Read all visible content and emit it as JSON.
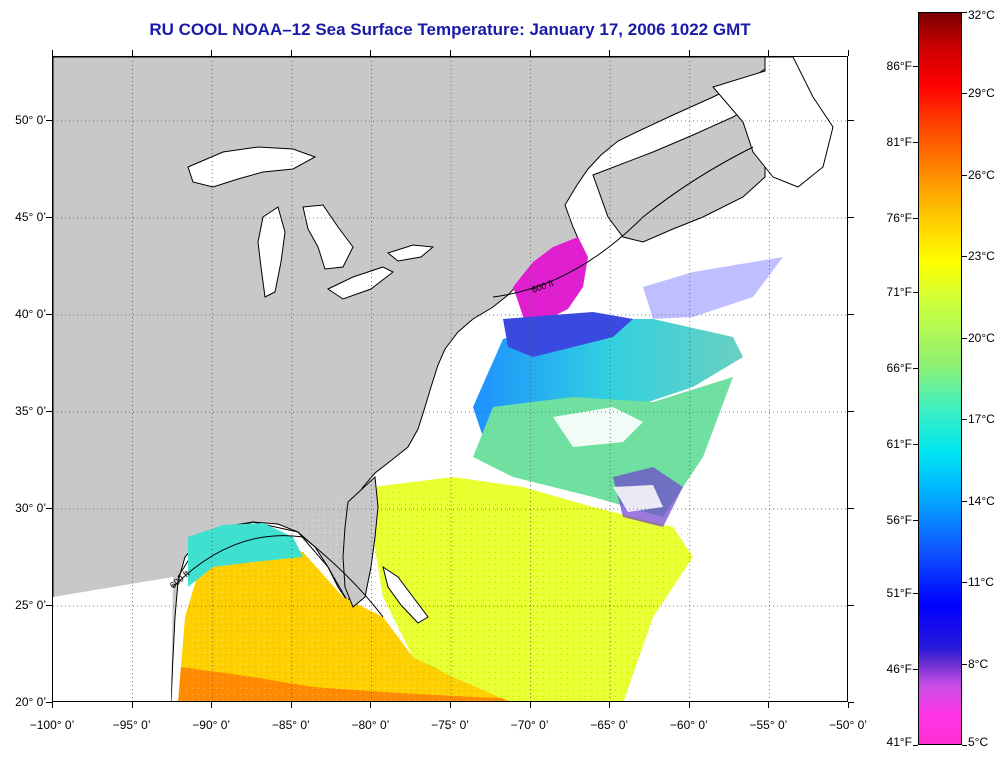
{
  "title": "RU COOL  NOAA–12  Sea Surface Temperature:  January 17, 2006 1022 GMT",
  "map": {
    "lon_range": [
      -100,
      -50
    ],
    "lat_range": [
      20,
      53.3
    ],
    "latitude_labels": [
      {
        "lat": 50,
        "label": "50° 0’"
      },
      {
        "lat": 45,
        "label": "45° 0’"
      },
      {
        "lat": 40,
        "label": "40° 0’"
      },
      {
        "lat": 35,
        "label": "35° 0’"
      },
      {
        "lat": 30,
        "label": "30° 0’"
      },
      {
        "lat": 25,
        "label": "25° 0’"
      },
      {
        "lat": 20,
        "label": "20° 0’"
      }
    ],
    "longitude_labels": [
      {
        "lon": -100,
        "label": "−100° 0’"
      },
      {
        "lon": -95,
        "label": "−95° 0’"
      },
      {
        "lon": -90,
        "label": "−90° 0’"
      },
      {
        "lon": -85,
        "label": "−85° 0’"
      },
      {
        "lon": -80,
        "label": "−80° 0’"
      },
      {
        "lon": -75,
        "label": "−75° 0’"
      },
      {
        "lon": -70,
        "label": "−70° 0’"
      },
      {
        "lon": -65,
        "label": "−65° 0’"
      },
      {
        "lon": -60,
        "label": "−60° 0’"
      },
      {
        "lon": -55,
        "label": "−55° 0’"
      },
      {
        "lon": -50,
        "label": "−50° 0’"
      }
    ],
    "contour_label": "600 ft",
    "colors": {
      "land": "#c8c8c8",
      "water_no_data": "#ffffff",
      "coastline": "#000000"
    }
  },
  "colorbar": {
    "range_c": [
      5,
      32
    ],
    "celsius_labels": [
      {
        "value": 32,
        "label": "32°C"
      },
      {
        "value": 29,
        "label": "29°C"
      },
      {
        "value": 26,
        "label": "26°C"
      },
      {
        "value": 23,
        "label": "23°C"
      },
      {
        "value": 20,
        "label": "20°C"
      },
      {
        "value": 17,
        "label": "17°C"
      },
      {
        "value": 14,
        "label": "14°C"
      },
      {
        "value": 11,
        "label": "11°C"
      },
      {
        "value": 8,
        "label": "8°C"
      },
      {
        "value": 5,
        "label": "5°C"
      }
    ],
    "fahrenheit_labels": [
      {
        "value_c": 30,
        "label": "86°F"
      },
      {
        "value_c": 27.2,
        "label": "81°F"
      },
      {
        "value_c": 24.4,
        "label": "76°F"
      },
      {
        "value_c": 21.7,
        "label": "71°F"
      },
      {
        "value_c": 18.9,
        "label": "66°F"
      },
      {
        "value_c": 16.1,
        "label": "61°F"
      },
      {
        "value_c": 13.3,
        "label": "56°F"
      },
      {
        "value_c": 10.6,
        "label": "51°F"
      },
      {
        "value_c": 7.8,
        "label": "46°F"
      },
      {
        "value_c": 5,
        "label": "41°F"
      }
    ]
  }
}
